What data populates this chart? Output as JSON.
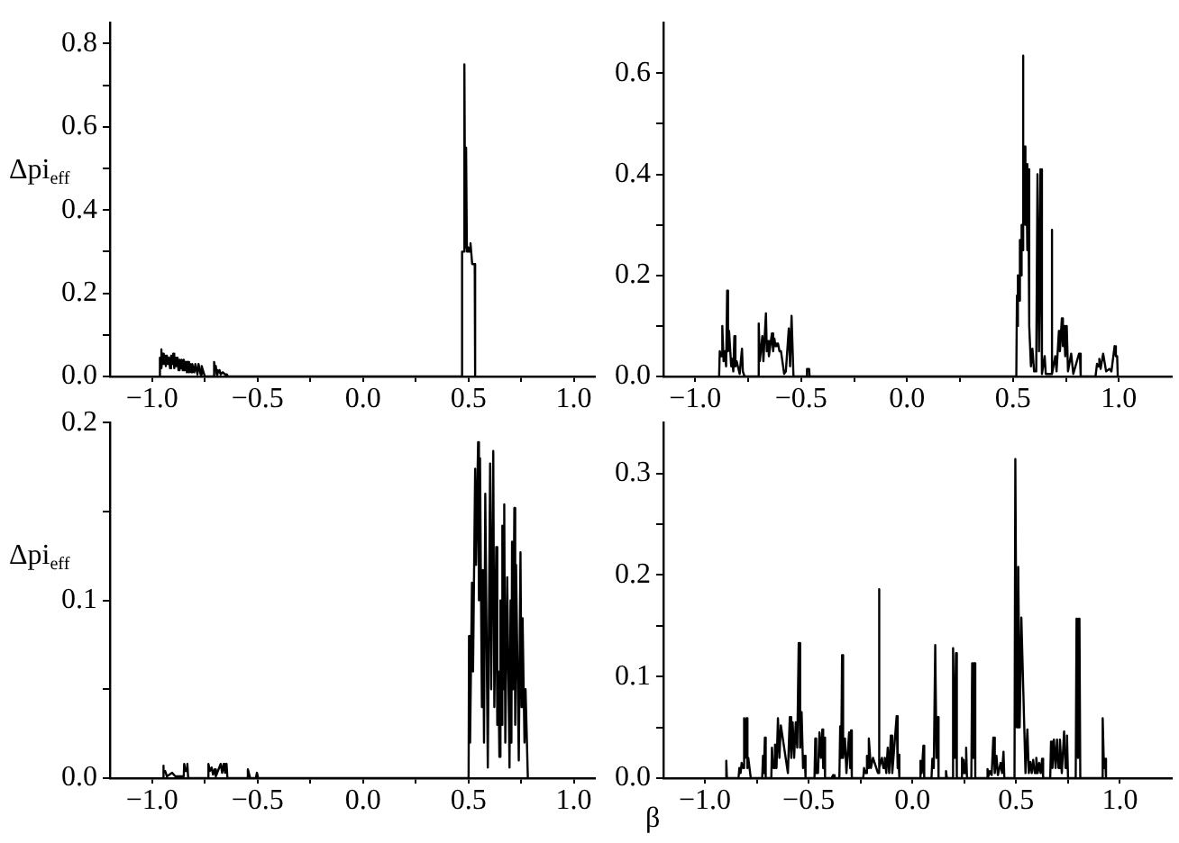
{
  "chart_data": [
    {
      "type": "line",
      "ylabel": "Δpi$_{eff}$",
      "color": "#000000",
      "xlim": [
        -1.2,
        1.1
      ],
      "ylim": [
        0,
        0.85
      ],
      "xticks": [
        {
          "value": -1,
          "label": "−1.0"
        },
        {
          "value": -0.75,
          "label": null
        },
        {
          "value": -0.5,
          "label": "−0.5"
        },
        {
          "value": -0.25,
          "label": null
        },
        {
          "value": 0,
          "label": "0.0"
        },
        {
          "value": 0.25,
          "label": null
        },
        {
          "value": 0.5,
          "label": "0.5"
        },
        {
          "value": 0.75,
          "label": null
        },
        {
          "value": 1,
          "label": "1.0"
        }
      ],
      "yticks": [
        {
          "value": 0,
          "label": "0.0"
        },
        {
          "value": 0.1,
          "label": null
        },
        {
          "value": 0.2,
          "label": "0.2"
        },
        {
          "value": 0.3,
          "label": null
        },
        {
          "value": 0.4,
          "label": "0.4"
        },
        {
          "value": 0.5,
          "label": null
        },
        {
          "value": 0.6,
          "label": "0.6"
        },
        {
          "value": 0.7,
          "label": null
        },
        {
          "value": 0.8,
          "label": "0.8"
        }
      ],
      "x": [
        -0.965,
        -0.963,
        -0.96,
        -0.958,
        -0.954,
        -0.95,
        -0.945,
        -0.94,
        -0.935,
        -0.93,
        -0.925,
        -0.92,
        -0.915,
        -0.91,
        -0.905,
        -0.9,
        -0.895,
        -0.89,
        -0.885,
        -0.88,
        -0.875,
        -0.87,
        -0.865,
        -0.86,
        -0.855,
        -0.85,
        -0.845,
        -0.84,
        -0.835,
        -0.83,
        -0.825,
        -0.82,
        -0.815,
        -0.81,
        -0.8,
        -0.795,
        -0.785,
        -0.78,
        -0.77,
        -0.765,
        -0.75,
        -0.708,
        -0.706,
        -0.702,
        -0.698,
        -0.694,
        -0.69,
        -0.685,
        -0.68,
        -0.675,
        -0.665,
        -0.655,
        -0.645,
        -0.641,
        0.468,
        0.47,
        0.479,
        0.481,
        0.485,
        0.489,
        0.493,
        0.5,
        0.505,
        0.51,
        0.518,
        0.53,
        0.532
      ],
      "values": [
        0,
        0.045,
        0.045,
        0.065,
        0.02,
        0.055,
        0.03,
        0.05,
        0.025,
        0.05,
        0.03,
        0.045,
        0.02,
        0.05,
        0.03,
        0.055,
        0.02,
        0.045,
        0.025,
        0.045,
        0.015,
        0.04,
        0.02,
        0.04,
        0.015,
        0.04,
        0.015,
        0.035,
        0.01,
        0.035,
        0.01,
        0.03,
        0.01,
        0.03,
        0.01,
        0.03,
        0.005,
        0.03,
        0.005,
        0.025,
        0,
        0,
        0.035,
        0.02,
        0.025,
        0.005,
        0.015,
        0.01,
        0.015,
        0.005,
        0.01,
        0.005,
        0.005,
        0,
        0,
        0.3,
        0.3,
        0.75,
        0.31,
        0.55,
        0.3,
        0.31,
        0.3,
        0.32,
        0.27,
        0.27,
        0
      ]
    },
    {
      "type": "line",
      "color": "#000000",
      "xlim": [
        -1.15,
        1.25
      ],
      "ylim": [
        0,
        0.7
      ],
      "xticks": [
        {
          "value": -1,
          "label": "−1.0"
        },
        {
          "value": -0.75,
          "label": null
        },
        {
          "value": -0.5,
          "label": "−0.5"
        },
        {
          "value": -0.25,
          "label": null
        },
        {
          "value": 0,
          "label": "0.0"
        },
        {
          "value": 0.25,
          "label": null
        },
        {
          "value": 0.5,
          "label": "0.5"
        },
        {
          "value": 0.75,
          "label": null
        },
        {
          "value": 1,
          "label": "1.0"
        }
      ],
      "yticks": [
        {
          "value": 0,
          "label": "0.0"
        },
        {
          "value": 0.1,
          "label": null
        },
        {
          "value": 0.2,
          "label": "0.2"
        },
        {
          "value": 0.3,
          "label": null
        },
        {
          "value": 0.4,
          "label": "0.4"
        },
        {
          "value": 0.5,
          "label": null
        },
        {
          "value": 0.6,
          "label": "0.6"
        }
      ],
      "x": [
        -0.887,
        -0.884,
        -0.877,
        -0.872,
        -0.866,
        -0.86,
        -0.854,
        -0.849,
        -0.845,
        -0.84,
        -0.83,
        -0.826,
        -0.82,
        -0.815,
        -0.81,
        -0.804,
        -0.79,
        -0.779,
        -0.775,
        -0.77,
        -0.767,
        -0.702,
        -0.7,
        -0.695,
        -0.683,
        -0.678,
        -0.666,
        -0.662,
        -0.656,
        -0.652,
        -0.638,
        -0.632,
        -0.626,
        -0.621,
        -0.615,
        -0.609,
        -0.602,
        -0.595,
        -0.58,
        -0.572,
        -0.558,
        -0.552,
        -0.545,
        -0.54,
        -0.536,
        -0.474,
        -0.472,
        -0.462,
        -0.46,
        0.516,
        0.519,
        0.522,
        0.525,
        0.528,
        0.533,
        0.537,
        0.541,
        0.544,
        0.547,
        0.55,
        0.556,
        0.559,
        0.563,
        0.568,
        0.572,
        0.577,
        0.585,
        0.592,
        0.6,
        0.61,
        0.616,
        0.62,
        0.623,
        0.63,
        0.637,
        0.65,
        0.655,
        0.68,
        0.683,
        0.686,
        0.7,
        0.706,
        0.717,
        0.722,
        0.731,
        0.736,
        0.741,
        0.747,
        0.754,
        0.76,
        0.775,
        0.78,
        0.785,
        0.812,
        0.816,
        0.82,
        0.89,
        0.897,
        0.902,
        0.908,
        0.914,
        0.926,
        0.94,
        0.955,
        0.965,
        0.98,
        0.986,
        0.992,
        0.995
      ],
      "values": [
        0,
        0.05,
        0.04,
        0.1,
        0.03,
        0.05,
        0.02,
        0.17,
        0.05,
        0.09,
        0.02,
        0.035,
        0.01,
        0.08,
        0.02,
        0.03,
        0.005,
        0.055,
        0.01,
        0.01,
        0,
        0,
        0.105,
        0.03,
        0.08,
        0.03,
        0.125,
        0.05,
        0.07,
        0.04,
        0.085,
        0.05,
        0.075,
        0.06,
        0.065,
        0.065,
        0.05,
        0.05,
        0.005,
        0.01,
        0.095,
        0.02,
        0.12,
        0.12,
        0,
        0,
        0.015,
        0.015,
        0,
        0,
        0.16,
        0.1,
        0.2,
        0.15,
        0.27,
        0.2,
        0.3,
        0.25,
        0.635,
        0.3,
        0.455,
        0.3,
        0.42,
        0.25,
        0.41,
        0.1,
        0.02,
        0.055,
        0.01,
        0.01,
        0.4,
        0.4,
        0.05,
        0.41,
        0.005,
        0.04,
        0.005,
        0.005,
        0.29,
        0.005,
        0.04,
        0.01,
        0.09,
        0.05,
        0.115,
        0.06,
        0.1,
        0.04,
        0.1,
        0.01,
        0.045,
        0.045,
        0.005,
        0.045,
        0.045,
        0,
        0,
        0.025,
        0.02,
        0.035,
        0.015,
        0.045,
        0.01,
        0.015,
        0.01,
        0.06,
        0.04,
        0.04,
        0
      ]
    },
    {
      "type": "line",
      "ylabel": "Δpi$_{eff}$",
      "color": "#000000",
      "xlim": [
        -1.2,
        1.1
      ],
      "ylim": [
        0,
        0.2
      ],
      "xticks": [
        {
          "value": -1,
          "label": "−1.0"
        },
        {
          "value": -0.75,
          "label": null
        },
        {
          "value": -0.5,
          "label": "−0.5"
        },
        {
          "value": -0.25,
          "label": null
        },
        {
          "value": 0,
          "label": "0.0"
        },
        {
          "value": 0.25,
          "label": null
        },
        {
          "value": 0.5,
          "label": "0.5"
        },
        {
          "value": 0.75,
          "label": null
        },
        {
          "value": 1,
          "label": "1.0"
        }
      ],
      "yticks": [
        {
          "value": 0,
          "label": "0.0"
        },
        {
          "value": 0.05,
          "label": null
        },
        {
          "value": 0.1,
          "label": "0.1"
        },
        {
          "value": 0.15,
          "label": null
        },
        {
          "value": 0.2,
          "label": "0.2"
        }
      ],
      "x": [
        -0.952,
        -0.948,
        -0.944,
        -0.938,
        -0.93,
        -0.905,
        -0.89,
        -0.85,
        -0.848,
        -0.84,
        -0.833,
        -0.829,
        -0.738,
        -0.733,
        -0.726,
        -0.718,
        -0.711,
        -0.704,
        -0.698,
        -0.675,
        -0.668,
        -0.661,
        -0.654,
        -0.647,
        -0.643,
        -0.55,
        -0.546,
        -0.535,
        -0.508,
        -0.503,
        -0.497,
        0.501,
        0.503,
        0.508,
        0.517,
        0.522,
        0.532,
        0.536,
        0.546,
        0.55,
        0.555,
        0.564,
        0.569,
        0.574,
        0.58,
        0.592,
        0.603,
        0.608,
        0.618,
        0.623,
        0.632,
        0.637,
        0.642,
        0.647,
        0.652,
        0.656,
        0.661,
        0.665,
        0.67,
        0.675,
        0.684,
        0.695,
        0.7,
        0.704,
        0.707,
        0.712,
        0.718,
        0.722,
        0.726,
        0.739,
        0.747,
        0.752,
        0.757,
        0.766,
        0.771,
        0.782
      ],
      "values": [
        0,
        0.007,
        0.003,
        0.004,
        0.001,
        0.003,
        0.001,
        0.001,
        0.008,
        0.004,
        0.008,
        0,
        0,
        0.008,
        0.004,
        0.006,
        0.002,
        0.005,
        0.001,
        0.008,
        0.003,
        0.008,
        0.003,
        0.008,
        0,
        0,
        0.005,
        0,
        0,
        0.003,
        0,
        0,
        0.08,
        0.02,
        0.11,
        0.06,
        0.174,
        0.12,
        0.189,
        0.1,
        0.18,
        0.04,
        0.117,
        0.02,
        0.16,
        0.006,
        0.177,
        0.05,
        0.184,
        0.04,
        0.13,
        0.03,
        0.06,
        0.012,
        0.1,
        0.03,
        0.142,
        0.05,
        0.154,
        0.02,
        0.113,
        0.006,
        0.1,
        0.02,
        0.133,
        0.05,
        0.152,
        0.03,
        0.12,
        0.01,
        0.127,
        0.04,
        0.09,
        0.02,
        0.05,
        0
      ]
    },
    {
      "type": "line",
      "xlabel": "β",
      "color": "#000000",
      "xlim": [
        -1.2,
        1.25
      ],
      "ylim": [
        0,
        0.35
      ],
      "xticks": [
        {
          "value": -1,
          "label": "−1.0"
        },
        {
          "value": -0.75,
          "label": null
        },
        {
          "value": -0.5,
          "label": "−0.5"
        },
        {
          "value": -0.25,
          "label": null
        },
        {
          "value": 0,
          "label": "0.0"
        },
        {
          "value": 0.25,
          "label": null
        },
        {
          "value": 0.5,
          "label": "0.5"
        },
        {
          "value": 0.75,
          "label": null
        },
        {
          "value": 1,
          "label": "1.0"
        }
      ],
      "yticks": [
        {
          "value": 0,
          "label": "0.0"
        },
        {
          "value": 0.05,
          "label": null
        },
        {
          "value": 0.1,
          "label": "0.1"
        },
        {
          "value": 0.15,
          "label": null
        },
        {
          "value": 0.2,
          "label": "0.2"
        },
        {
          "value": 0.25,
          "label": null
        },
        {
          "value": 0.3,
          "label": "0.3"
        }
      ],
      "x": [
        -0.9,
        -0.897,
        -0.894,
        -0.838,
        -0.834,
        -0.828,
        -0.823,
        -0.816,
        -0.811,
        -0.806,
        -0.8,
        -0.795,
        -0.791,
        -0.779,
        -0.724,
        -0.72,
        -0.716,
        -0.711,
        -0.707,
        -0.68,
        -0.677,
        -0.67,
        -0.662,
        -0.655,
        -0.648,
        -0.641,
        -0.634,
        -0.6,
        -0.591,
        -0.584,
        -0.577,
        -0.57,
        -0.562,
        -0.555,
        -0.548,
        -0.541,
        -0.534,
        -0.527,
        -0.519,
        -0.515,
        -0.472,
        -0.468,
        -0.464,
        -0.455,
        -0.448,
        -0.441,
        -0.434,
        -0.43,
        -0.425,
        -0.421,
        -0.39,
        -0.382,
        -0.375,
        -0.352,
        -0.348,
        -0.343,
        -0.339,
        -0.334,
        -0.325,
        -0.318,
        -0.305,
        -0.3,
        -0.296,
        -0.292,
        -0.237,
        -0.233,
        -0.226,
        -0.219,
        -0.214,
        -0.21,
        -0.2,
        -0.19,
        -0.166,
        -0.162,
        -0.158,
        -0.147,
        -0.14,
        -0.133,
        -0.126,
        -0.119,
        -0.112,
        -0.104,
        -0.097,
        -0.076,
        -0.071,
        -0.067,
        -0.063,
        0.035,
        0.039,
        0.045,
        0.053,
        0.057,
        0.092,
        0.096,
        0.103,
        0.11,
        0.116,
        0.122,
        0.126,
        0.158,
        0.162,
        0.166,
        0.192,
        0.196,
        0.203,
        0.21,
        0.214,
        0.235,
        0.239,
        0.243,
        0.247,
        0.253,
        0.259,
        0.263,
        0.284,
        0.288,
        0.294,
        0.299,
        0.303,
        0.358,
        0.362,
        0.367,
        0.373,
        0.382,
        0.39,
        0.397,
        0.405,
        0.412,
        0.425,
        0.432,
        0.439,
        0.443,
        0.492,
        0.496,
        0.503,
        0.51,
        0.517,
        0.525,
        0.545,
        0.554,
        0.561,
        0.568,
        0.575,
        0.582,
        0.59,
        0.597,
        0.604,
        0.611,
        0.618,
        0.625,
        0.63,
        0.664,
        0.668,
        0.675,
        0.682,
        0.69,
        0.697,
        0.704,
        0.711,
        0.72,
        0.731,
        0.738,
        0.745,
        0.75,
        0.787,
        0.791,
        0.798,
        0.805,
        0.809,
        0.913,
        0.917,
        0.923,
        0.929,
        0.933
      ],
      "values": [
        0,
        0.017,
        0,
        0,
        0.01,
        0.005,
        0.015,
        0.01,
        0.059,
        0.02,
        0.059,
        0.01,
        0.02,
        0,
        0,
        0.022,
        0.005,
        0.04,
        0,
        0,
        0.03,
        0.01,
        0.033,
        0.01,
        0.059,
        0.02,
        0.052,
        0.005,
        0.06,
        0.02,
        0.055,
        0.02,
        0.055,
        0.03,
        0.133,
        0.03,
        0.065,
        0.01,
        0.022,
        0,
        0,
        0.039,
        0.005,
        0.005,
        0.045,
        0.02,
        0.048,
        0.01,
        0.04,
        0,
        0,
        0.003,
        0,
        0,
        0.051,
        0.02,
        0.121,
        0.02,
        0.039,
        0.005,
        0.045,
        0.01,
        0.047,
        0,
        0,
        0.01,
        0.005,
        0.022,
        0.01,
        0.039,
        0.01,
        0.02,
        0.005,
        0.186,
        0.01,
        0.02,
        0.01,
        0.02,
        0.005,
        0.03,
        0.005,
        0.042,
        0.005,
        0.061,
        0.01,
        0.023,
        0,
        0,
        0.017,
        0.005,
        0.032,
        0,
        0,
        0.019,
        0.01,
        0.131,
        0.02,
        0.06,
        0,
        0,
        0.007,
        0,
        0,
        0.128,
        0.02,
        0.123,
        0,
        0,
        0.02,
        0.005,
        0.018,
        0.005,
        0.03,
        0,
        0,
        0.113,
        0.02,
        0.113,
        0,
        0,
        0.009,
        0.002,
        0.007,
        0.003,
        0.04,
        0.005,
        0.022,
        0.003,
        0.015,
        0.005,
        0.026,
        0,
        0,
        0.314,
        0.05,
        0.208,
        0.05,
        0.158,
        0.005,
        0.048,
        0.005,
        0.016,
        0.005,
        0.018,
        0.005,
        0.02,
        0.005,
        0.015,
        0.005,
        0.019,
        0,
        0,
        0.036,
        0.01,
        0.038,
        0.01,
        0.038,
        0.01,
        0.038,
        0.005,
        0.046,
        0.01,
        0.042,
        0,
        0,
        0.157,
        0.02,
        0.157,
        0,
        0,
        0.059,
        0.01,
        0.019,
        0
      ]
    }
  ]
}
